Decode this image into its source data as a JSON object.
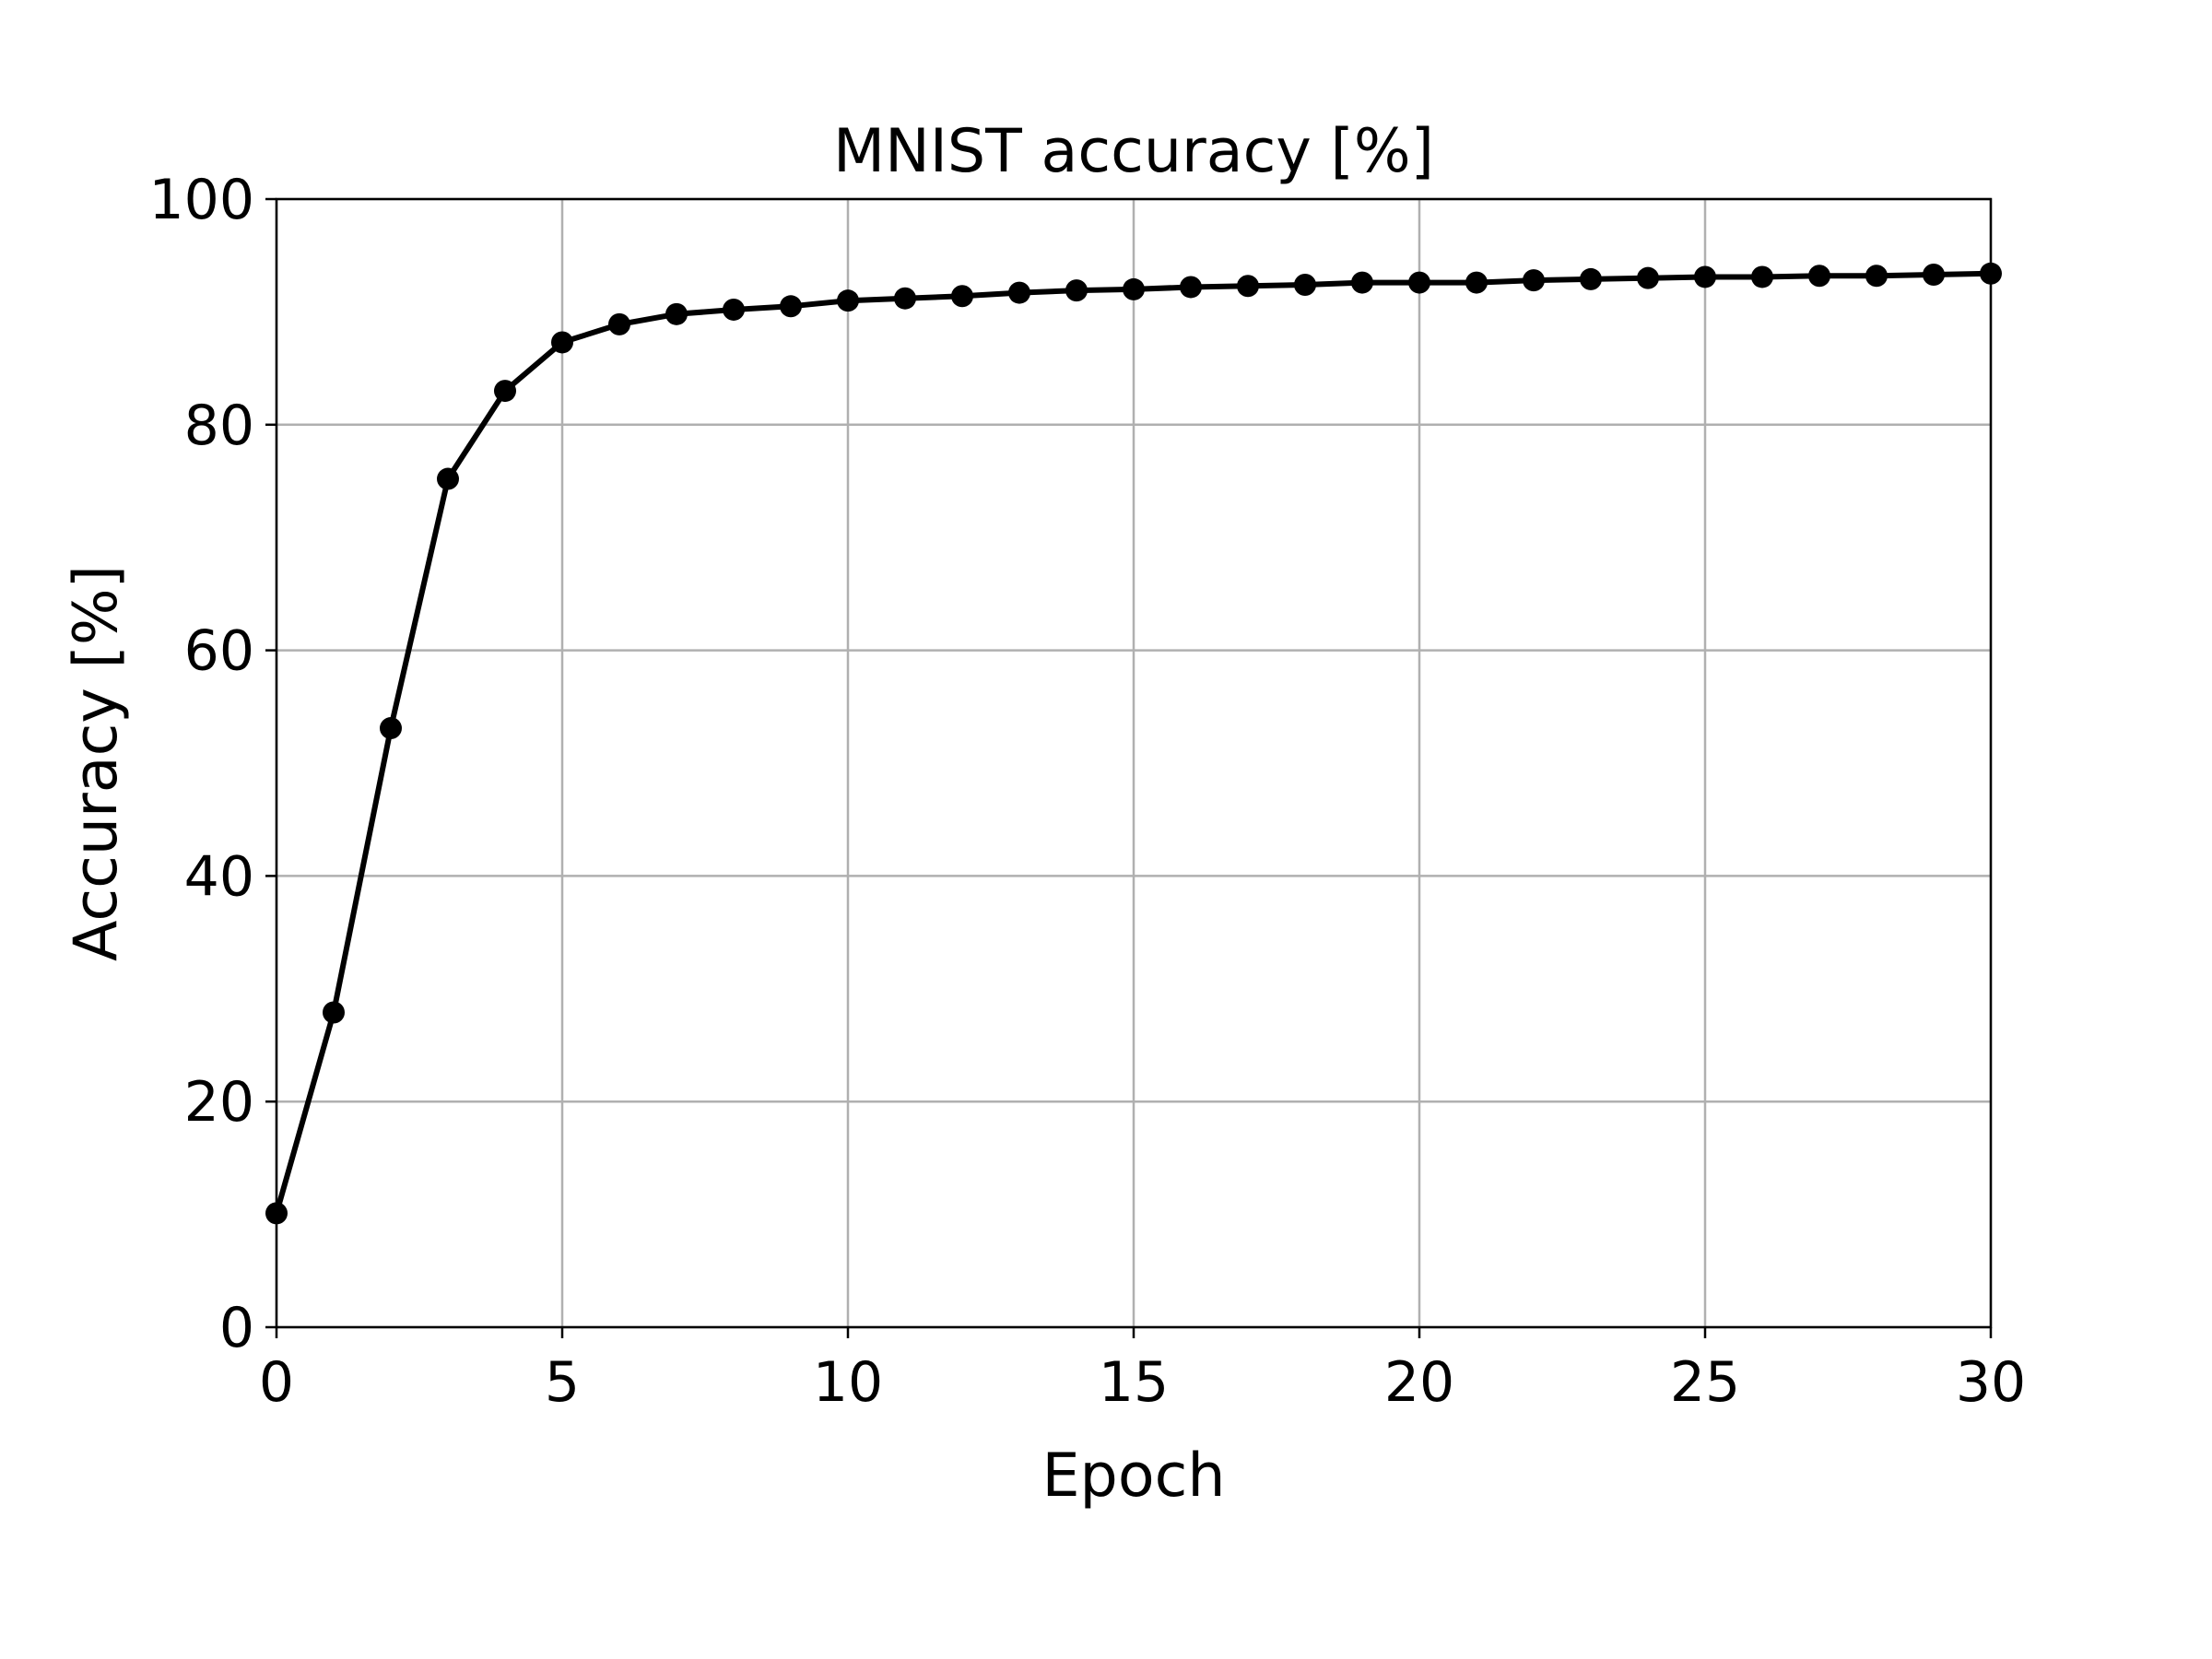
{
  "chart_data": {
    "type": "line",
    "title": "MNIST accuracy [%]",
    "xlabel": "Epoch",
    "ylabel": "Accuracy [%]",
    "xlim": [
      0,
      30
    ],
    "ylim": [
      0,
      100
    ],
    "xticks": [
      0,
      5,
      10,
      15,
      20,
      25,
      30
    ],
    "yticks": [
      0,
      20,
      40,
      60,
      80,
      100
    ],
    "grid": true,
    "colors": {
      "line": "#000000",
      "grid": "#b0b0b0",
      "axes": "#000000"
    },
    "series": [
      {
        "x": [
          0,
          1,
          2,
          3,
          4,
          5,
          6,
          7,
          8,
          9,
          10,
          11,
          12,
          13,
          14,
          15,
          16,
          17,
          18,
          19,
          20,
          21,
          22,
          23,
          24,
          25,
          26,
          27,
          28,
          29,
          30
        ],
        "values": [
          10.1,
          27.9,
          53.1,
          75.2,
          83.0,
          87.3,
          88.9,
          89.8,
          90.2,
          90.5,
          91.0,
          91.2,
          91.4,
          91.7,
          91.9,
          92.0,
          92.2,
          92.3,
          92.4,
          92.6,
          92.6,
          92.6,
          92.8,
          92.9,
          93.0,
          93.1,
          93.1,
          93.2,
          93.2,
          93.3,
          93.4
        ]
      }
    ]
  }
}
